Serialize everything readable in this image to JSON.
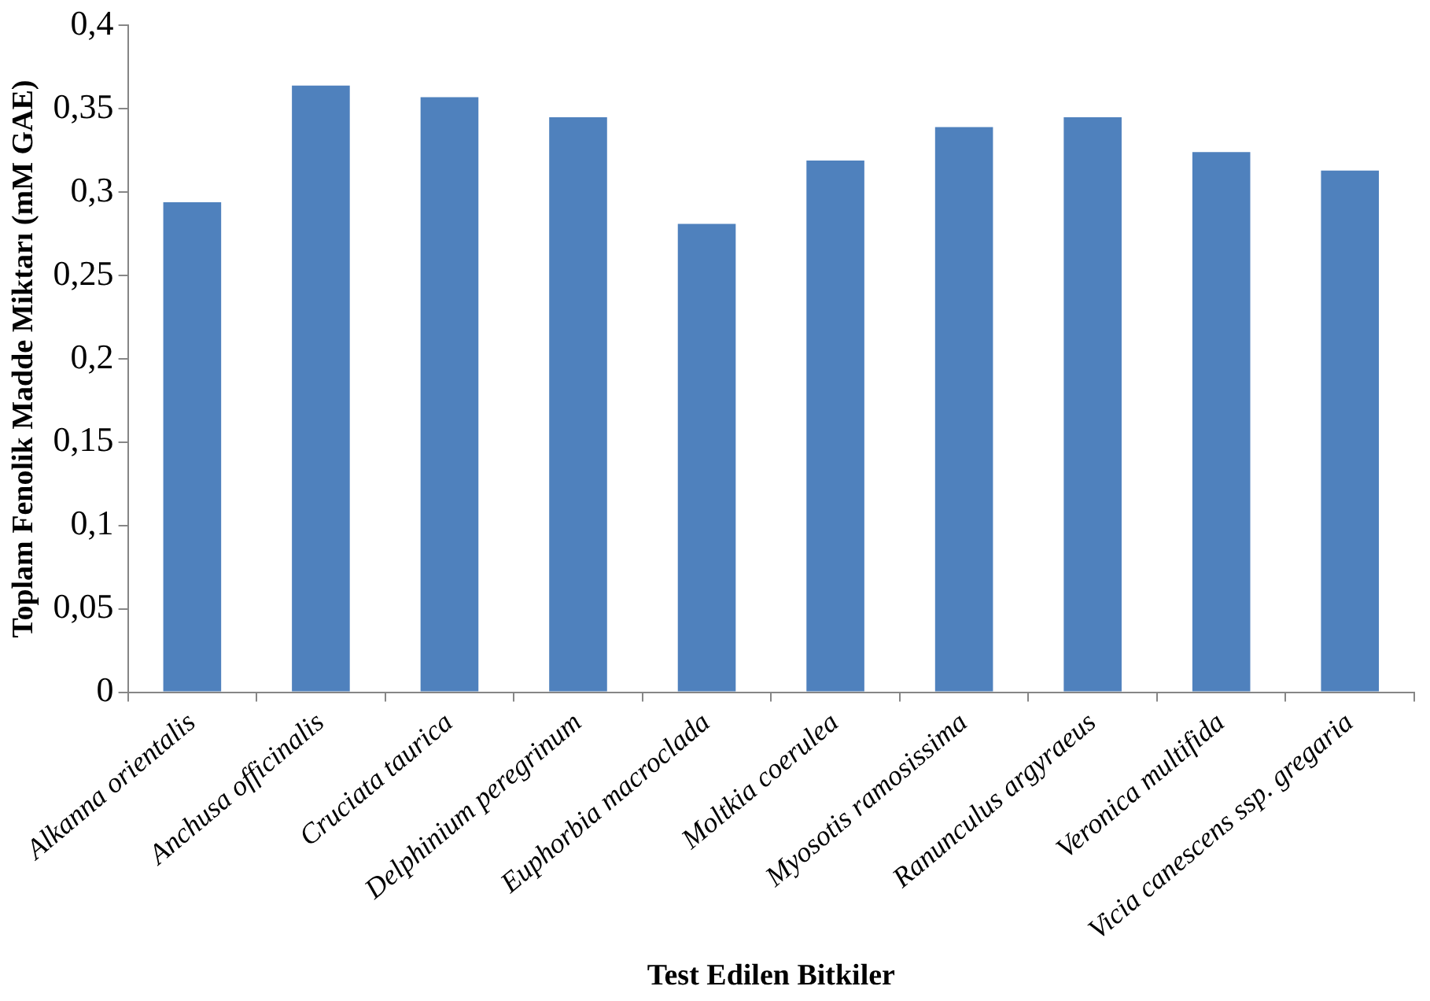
{
  "chart_data": {
    "type": "bar",
    "xlabel": "Test Edilen Bitkiler",
    "ylabel": "Toplam Fenolik Madde Miktarı (mM GAE)",
    "categories": [
      "Alkanna orientalis",
      "Anchusa officinalis",
      "Cruciata taurica",
      "Delphinium peregrinum",
      "Euphorbia macroclada",
      "Moltkia coerulea",
      "Myosotis ramosissima",
      "Ranunculus argyraeus",
      "Veronica multifida",
      "Vicia canescens ssp. gregaria"
    ],
    "values": [
      0.294,
      0.364,
      0.357,
      0.345,
      0.281,
      0.319,
      0.339,
      0.345,
      0.324,
      0.313
    ],
    "color": "#4f81bd",
    "ylim": [
      0,
      0.4
    ],
    "yticks": [
      0,
      {
        "value": 0.05,
        "label": "0,05"
      },
      {
        "value": 0.1,
        "label": "0,1"
      },
      {
        "value": 0.15,
        "label": "0,15"
      },
      {
        "value": 0.2,
        "label": "0,2"
      },
      {
        "value": 0.25,
        "label": "0,25"
      },
      {
        "value": 0.3,
        "label": "0,3"
      },
      {
        "value": 0.35,
        "label": "0,35"
      },
      {
        "value": 0.4,
        "label": "0,4"
      }
    ],
    "grid": false,
    "legend": false
  }
}
